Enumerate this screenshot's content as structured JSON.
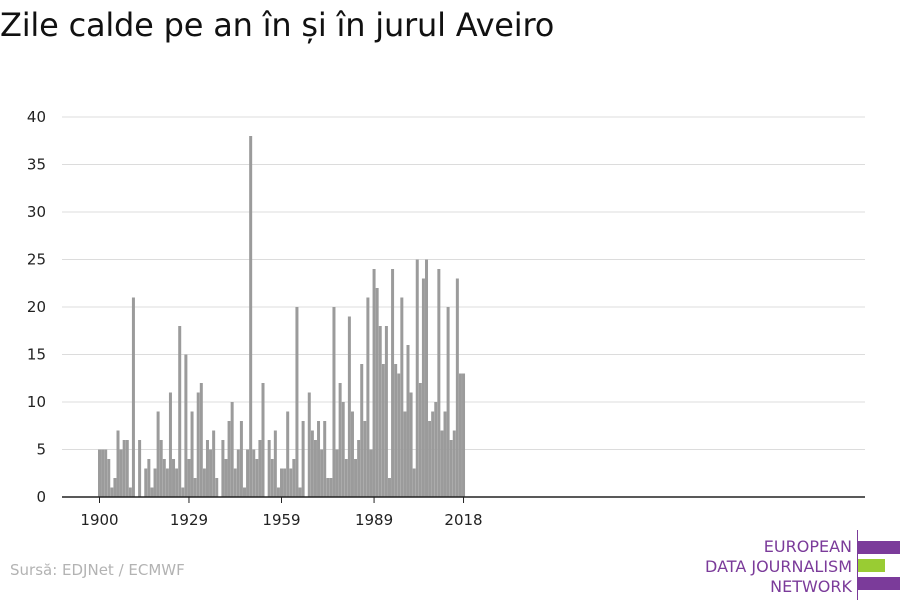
{
  "title": "Zile calde pe an în și în jurul Aveiro",
  "source": "Sursă: EDJNet / ECMWF",
  "brand": {
    "lines": [
      "EUROPEAN",
      "DATA JOURNALISM",
      "NETWORK"
    ],
    "colors": {
      "text": "#7b3b9a",
      "bar_purple": "#7b3b9a",
      "bar_green": "#99cc33"
    }
  },
  "colors": {
    "bar": "#9b9b9b",
    "grid": "#dcdcdc",
    "axis": "#222222"
  },
  "chart_data": {
    "type": "bar",
    "title": "Zile calde pe an în și în jurul Aveiro",
    "xlabel": "",
    "ylabel": "",
    "ylim": [
      0,
      40
    ],
    "y_ticks": [
      0,
      5,
      10,
      15,
      20,
      25,
      30,
      35,
      40
    ],
    "x_ticks": [
      "1900",
      "1929",
      "1959",
      "1989",
      "2018"
    ],
    "grid": true,
    "x_start": 1900,
    "values": [
      5,
      5,
      5,
      4,
      1,
      2,
      7,
      5,
      6,
      6,
      1,
      21,
      0,
      6,
      0,
      3,
      4,
      1,
      3,
      9,
      6,
      4,
      3,
      11,
      4,
      3,
      18,
      1,
      15,
      4,
      9,
      2,
      11,
      12,
      3,
      6,
      5,
      7,
      2,
      0,
      6,
      4,
      8,
      10,
      3,
      5,
      8,
      1,
      5,
      38,
      5,
      4,
      6,
      12,
      0,
      6,
      4,
      7,
      1,
      3,
      3,
      9,
      3,
      4,
      20,
      1,
      8,
      0,
      11,
      7,
      6,
      8,
      5,
      8,
      2,
      2,
      20,
      5,
      12,
      10,
      4,
      19,
      9,
      4,
      6,
      14,
      8,
      21,
      5,
      24,
      22,
      18,
      14,
      18,
      2,
      24,
      14,
      13,
      21,
      9,
      16,
      11,
      3,
      25,
      12,
      23,
      25,
      8,
      9,
      10,
      24,
      7,
      9,
      20,
      6,
      7,
      23,
      13,
      13
    ]
  }
}
